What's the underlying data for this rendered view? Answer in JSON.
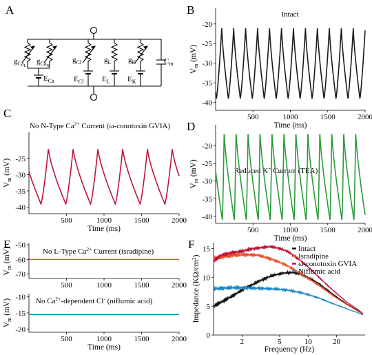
{
  "panels": {
    "a": {
      "letter": "A",
      "labels": {
        "gCaL_main": "g",
        "gCaL_sub": "Ca",
        "gCaL_subsub": "L",
        "gCaN_main": "g",
        "gCaN_sub": "Ca",
        "gCaN_subsub": "N",
        "gCl_main": "g",
        "gCl_sub": "Cl",
        "gL_main": "g",
        "gL_sub": "L",
        "gK_main": "g",
        "gK_sub": "K",
        "Cm_main": "C",
        "Cm_sub": "m",
        "ECa_main": "E",
        "ECa_sub": "Ca",
        "ECl_main": "E",
        "ECl_sub": "Cl",
        "EL_main": "E",
        "EL_sub": "L",
        "EK_main": "E",
        "EK_sub": "K"
      }
    },
    "b": {
      "letter": "B"
    },
    "c": {
      "letter": "C"
    },
    "d": {
      "letter": "D"
    },
    "e": {
      "letter": "E"
    },
    "f": {
      "letter": "F"
    }
  },
  "chart_data": [
    {
      "id": "B",
      "type": "line",
      "title": "Intact",
      "xlabel": "Time (ms)",
      "ylabel_main": "V",
      "ylabel_sub": "m",
      "ylabel_unit": " (mV)",
      "xlim": [
        0,
        2000
      ],
      "ylim": [
        -42,
        -16
      ],
      "xticks": [
        500,
        1000,
        1500,
        2000
      ],
      "yticks": [
        -40,
        -35,
        -30,
        -25,
        -20
      ],
      "series": [
        {
          "color": "#1a1a1a",
          "wave": {
            "period": 160,
            "min": -39,
            "max": -21,
            "t0": 10,
            "rise": 0.45
          }
        }
      ]
    },
    {
      "id": "C",
      "type": "line",
      "title": "No N-Type Ca2+ Current (ω-conotoxin GVIA)",
      "title_pre": "No N-Type Ca",
      "title_sup": "2+",
      "title_post": " Current (ω-conotoxin GVIA)",
      "xlabel": "Time (ms)",
      "ylabel_main": "V",
      "ylabel_sub": "m",
      "ylabel_unit": " (mV)",
      "xlim": [
        0,
        2000
      ],
      "ylim": [
        -42,
        -17
      ],
      "xticks": [
        500,
        1000,
        1500,
        2000
      ],
      "yticks": [
        -40,
        -35,
        -30,
        -25
      ],
      "series": [
        {
          "color": "#c0143c",
          "wave": {
            "period": 330,
            "min": -39,
            "max": -22,
            "t0": 160,
            "rise": 0.3
          }
        }
      ]
    },
    {
      "id": "D",
      "type": "line",
      "title": "Reduced K+ Current (TEA)",
      "title_pre": "Reduced K",
      "title_sup": "+",
      "title_post": " Current (TEA)",
      "xlabel": "Time (ms)",
      "ylabel_main": "V",
      "ylabel_sub": "m",
      "ylabel_unit": " (mV)",
      "xlim": [
        0,
        2000
      ],
      "ylim": [
        -42,
        -14
      ],
      "xticks": [
        500,
        1000,
        1500,
        2000
      ],
      "yticks": [
        -40,
        -35,
        -30,
        -25,
        -20
      ],
      "series": [
        {
          "color": "#2a9a3a",
          "wave": {
            "period": 160,
            "min": -41,
            "max": -16,
            "t0": 90,
            "rise": 0.15
          }
        }
      ]
    },
    {
      "id": "E1",
      "type": "line",
      "title": "No L-Type Ca2+ Current (isradipine)",
      "title_pre": "No L-Type Ca",
      "title_sup": "2+",
      "title_post": " Current (isradipine)",
      "xlabel": "",
      "ylabel_main": "V",
      "ylabel_sub": "m",
      "ylabel_unit": " (mV)",
      "xlim": [
        0,
        2000
      ],
      "ylim": [
        -73,
        -49
      ],
      "xticks": [
        500,
        1000,
        1500,
        2000
      ],
      "yticks": [
        -70,
        -60,
        -50
      ],
      "series": [
        {
          "color": "#e8542a",
          "constant": -60
        }
      ]
    },
    {
      "id": "E2",
      "type": "line",
      "title": "No Ca2+-dependent Cl- (niflumic acid)",
      "title_pre": "No Ca",
      "title_sup": "2+",
      "title_mid": "-dependent Cl",
      "title_sup2": "-",
      "title_post": " (niflumic acid)",
      "xlabel": "Time (ms)",
      "ylabel_main": "V",
      "ylabel_sub": "m",
      "ylabel_unit": " (mV)",
      "xlim": [
        0,
        2000
      ],
      "ylim": [
        -21,
        -9
      ],
      "xticks": [
        500,
        1000,
        1500,
        2000
      ],
      "yticks": [
        -20,
        -15,
        -10
      ],
      "series": [
        {
          "color": "#1e8ac8",
          "constant": -15.5
        }
      ]
    },
    {
      "id": "F",
      "type": "line",
      "xscale": "log",
      "xlabel": "Frequency (Hz)",
      "ylabel": "Impedance (KΩ/cm²)",
      "ylabel_pre": "Impedance (KΩ/cm",
      "ylabel_sup": "2",
      "ylabel_post": ")",
      "xlim": [
        1,
        40
      ],
      "ylim": [
        0,
        16
      ],
      "xticks": [
        2,
        5,
        10,
        20
      ],
      "yticks": [
        0,
        5,
        10,
        15
      ],
      "legend_position": "top-right",
      "series": [
        {
          "name": "Intact",
          "color": "#111111",
          "points": [
            [
              1,
              5.0
            ],
            [
              1.3,
              6.0
            ],
            [
              1.6,
              6.8
            ],
            [
              2,
              7.8
            ],
            [
              2.5,
              8.6
            ],
            [
              3,
              9.3
            ],
            [
              4,
              10.2
            ],
            [
              5,
              10.6
            ],
            [
              6,
              10.8
            ],
            [
              7,
              10.8
            ],
            [
              8,
              10.6
            ],
            [
              10,
              10.0
            ],
            [
              13,
              8.9
            ],
            [
              16,
              7.8
            ],
            [
              20,
              6.6
            ],
            [
              26,
              5.3
            ],
            [
              33,
              4.3
            ],
            [
              38,
              3.7
            ]
          ]
        },
        {
          "name": "Isradipine",
          "color": "#e8542a",
          "points": [
            [
              1,
              13.3
            ],
            [
              1.3,
              13.6
            ],
            [
              1.6,
              13.8
            ],
            [
              2,
              13.9
            ],
            [
              2.5,
              13.9
            ],
            [
              3,
              13.8
            ],
            [
              4,
              13.2
            ],
            [
              5,
              12.6
            ],
            [
              6,
              12.0
            ],
            [
              7,
              11.4
            ],
            [
              8,
              10.8
            ],
            [
              10,
              9.8
            ],
            [
              13,
              8.6
            ],
            [
              16,
              7.5
            ],
            [
              20,
              6.4
            ],
            [
              26,
              5.2
            ],
            [
              33,
              4.2
            ],
            [
              38,
              3.6
            ]
          ]
        },
        {
          "name": "ω-conotoxin GVIA",
          "color": "#c0143c",
          "points": [
            [
              1,
              12.8
            ],
            [
              1.2,
              13.8
            ],
            [
              1.5,
              14.2
            ],
            [
              2,
              14.5
            ],
            [
              2.5,
              14.9
            ],
            [
              3,
              15.1
            ],
            [
              4,
              15.3
            ],
            [
              5,
              15.0
            ],
            [
              6,
              14.5
            ],
            [
              7,
              13.8
            ],
            [
              8,
              13.1
            ],
            [
              10,
              11.8
            ],
            [
              13,
              10.0
            ],
            [
              16,
              8.6
            ],
            [
              20,
              7.2
            ],
            [
              26,
              5.6
            ],
            [
              33,
              4.5
            ],
            [
              38,
              3.7
            ]
          ]
        },
        {
          "name": "Niflumic acid",
          "color": "#1e8ac8",
          "points": [
            [
              1,
              8.0
            ],
            [
              1.5,
              8.2
            ],
            [
              2,
              8.2
            ],
            [
              3,
              8.1
            ],
            [
              4,
              8.0
            ],
            [
              5,
              7.9
            ],
            [
              6,
              7.8
            ],
            [
              7,
              7.6
            ],
            [
              8,
              7.4
            ],
            [
              10,
              7.0
            ],
            [
              13,
              6.4
            ],
            [
              16,
              5.8
            ],
            [
              20,
              5.2
            ],
            [
              26,
              4.5
            ],
            [
              33,
              3.9
            ],
            [
              38,
              3.5
            ]
          ]
        }
      ]
    }
  ]
}
